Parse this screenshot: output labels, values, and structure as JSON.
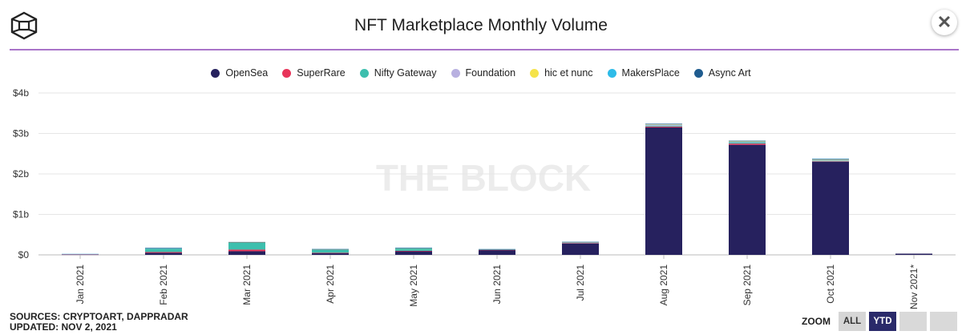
{
  "header": {
    "title": "NFT Marketplace Monthly Volume",
    "close_label": "✕"
  },
  "footer": {
    "sources_line1": "SOURCES: CRYPTOART, DAPPRADAR",
    "sources_line2": "UPDATED: NOV 2, 2021",
    "zoom_label": "ZOOM",
    "zoom_all": "ALL",
    "zoom_ytd": "YTD"
  },
  "watermark": "THE BLOCK",
  "chart_data": {
    "type": "bar",
    "stacked": true,
    "title": "NFT Marketplace Monthly Volume",
    "xlabel": "",
    "ylabel": "",
    "ylim": [
      0,
      4
    ],
    "yunit": "billion USD",
    "yticks": [
      "$0",
      "$1b",
      "$2b",
      "$3b",
      "$4b"
    ],
    "categories": [
      "Jan 2021",
      "Feb 2021",
      "Mar 2021",
      "Apr 2021",
      "May 2021",
      "Jun 2021",
      "Jul 2021",
      "Aug 2021",
      "Sep 2021",
      "Oct 2021",
      "Nov 2021*"
    ],
    "series": [
      {
        "name": "OpenSea",
        "color": "#26215e",
        "values": [
          0.01,
          0.05,
          0.09,
          0.04,
          0.09,
          0.12,
          0.28,
          3.15,
          2.72,
          2.3,
          0.03
        ]
      },
      {
        "name": "SuperRare",
        "color": "#e8345a",
        "values": [
          0.001,
          0.02,
          0.04,
          0.01,
          0.01,
          0.005,
          0.01,
          0.02,
          0.03,
          0.01,
          0.0
        ]
      },
      {
        "name": "Nifty Gateway",
        "color": "#3dbfae",
        "values": [
          0.01,
          0.09,
          0.17,
          0.08,
          0.06,
          0.01,
          0.01,
          0.02,
          0.03,
          0.02,
          0.0
        ]
      },
      {
        "name": "Foundation",
        "color": "#b8b0e0",
        "values": [
          0.001,
          0.005,
          0.01,
          0.005,
          0.005,
          0.002,
          0.005,
          0.03,
          0.02,
          0.02,
          0.0
        ]
      },
      {
        "name": "hic et nunc",
        "color": "#f5e34a",
        "values": [
          0.0,
          0.0,
          0.002,
          0.002,
          0.002,
          0.002,
          0.01,
          0.005,
          0.005,
          0.01,
          0.0
        ]
      },
      {
        "name": "MakersPlace",
        "color": "#2ebbe8",
        "values": [
          0.001,
          0.005,
          0.005,
          0.005,
          0.005,
          0.002,
          0.005,
          0.01,
          0.01,
          0.01,
          0.0
        ]
      },
      {
        "name": "Async Art",
        "color": "#1f5c8f",
        "values": [
          0.0,
          0.002,
          0.002,
          0.002,
          0.002,
          0.001,
          0.002,
          0.005,
          0.005,
          0.005,
          0.0
        ]
      }
    ]
  }
}
